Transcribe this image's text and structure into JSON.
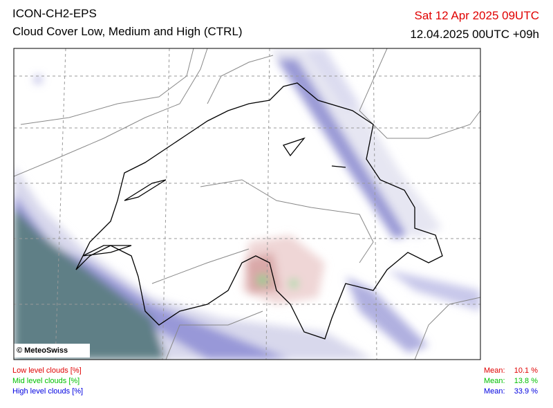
{
  "header": {
    "model": "ICON-CH2-EPS",
    "title": "Cloud Cover Low, Medium and High (CTRL)",
    "valid_time": "Sat 12 Apr 2025 09UTC",
    "run": "12.04.2025 00UTC +09h"
  },
  "map": {
    "copyright": "© MeteoSwiss"
  },
  "legend": [
    {
      "label": "Low level clouds [%]",
      "mean_label": "Mean:",
      "mean": "10.1 %"
    },
    {
      "label": "Mid level clouds [%]",
      "mean_label": "Mean:",
      "mean": "13.8 %"
    },
    {
      "label": "High level clouds [%]",
      "mean_label": "Mean:",
      "mean": "33.9 %"
    }
  ]
}
